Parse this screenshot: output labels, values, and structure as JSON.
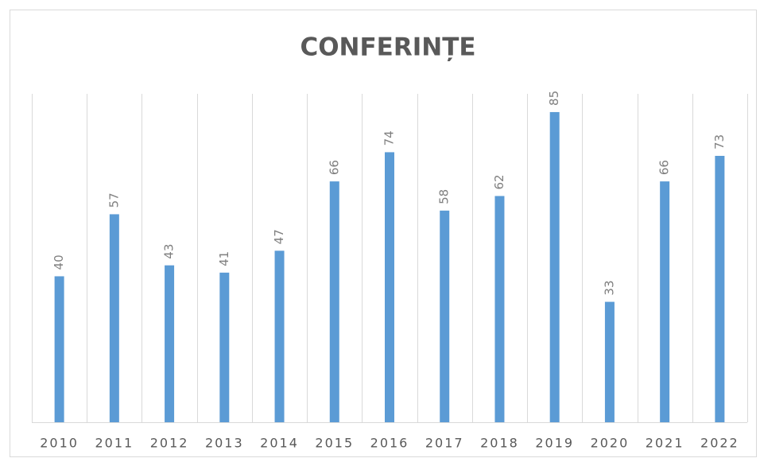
{
  "chart_data": {
    "type": "bar",
    "title": "CONFERINȚE",
    "categories": [
      "2010",
      "2011",
      "2012",
      "2013",
      "2014",
      "2015",
      "2016",
      "2017",
      "2018",
      "2019",
      "2020",
      "2021",
      "2022"
    ],
    "values": [
      40,
      57,
      43,
      41,
      47,
      66,
      74,
      58,
      62,
      85,
      33,
      66,
      73
    ],
    "color": "#5b9bd5",
    "ylim": [
      0,
      90
    ]
  }
}
